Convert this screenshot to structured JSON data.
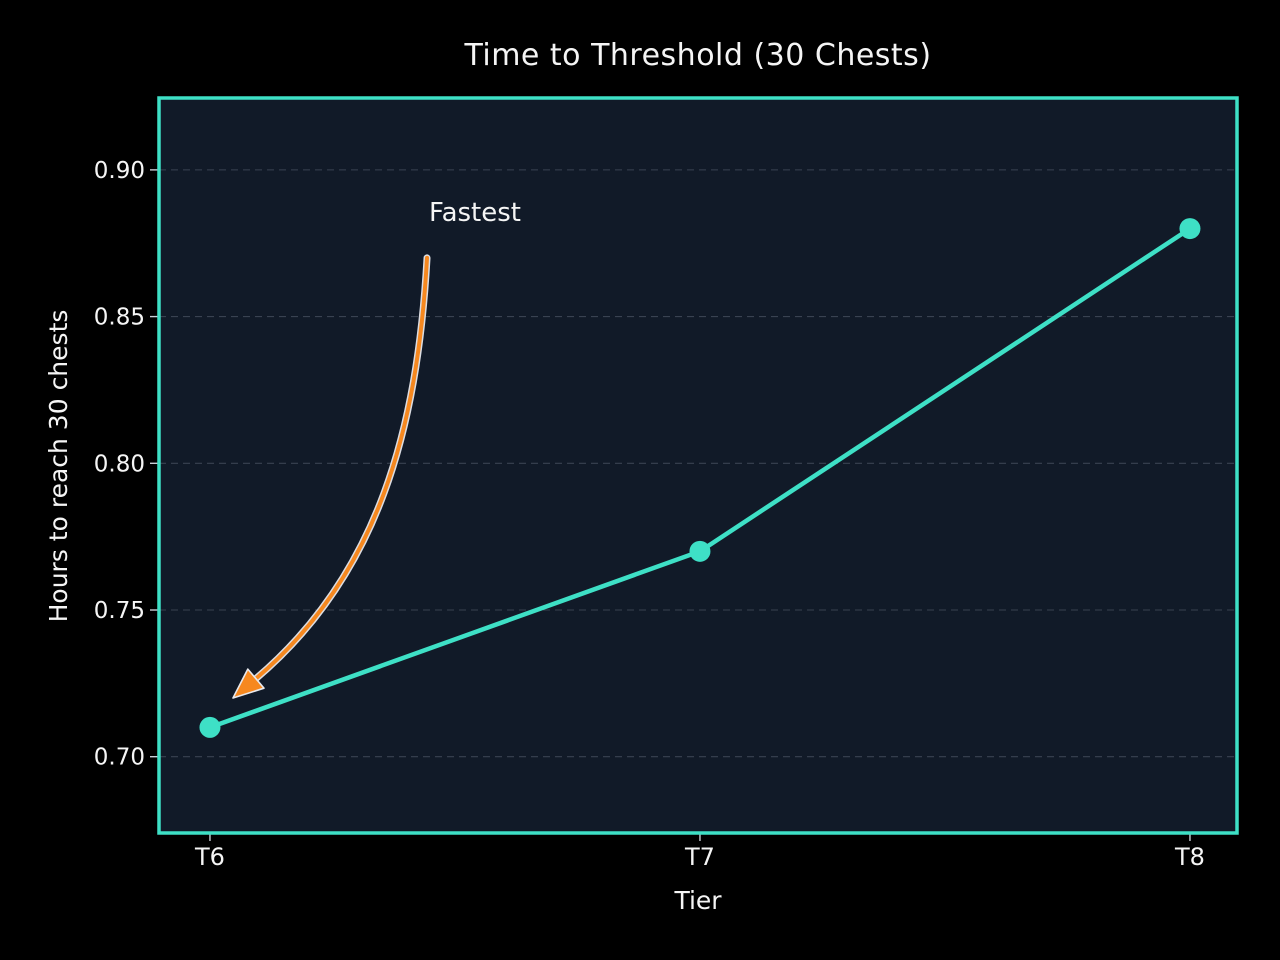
{
  "chart_data": {
    "type": "line",
    "title": "Time to Threshold (30 Chests)",
    "xlabel": "Tier",
    "ylabel": "Hours to reach 30 chests",
    "categories": [
      "T6",
      "T7",
      "T8"
    ],
    "series": [
      {
        "name": "Hours to reach 30 chests",
        "values": [
          0.71,
          0.77,
          0.88
        ]
      }
    ],
    "ytick_values": [
      0.9,
      0.85,
      0.8,
      0.75,
      0.7
    ],
    "ytick_labels": [
      "0.90",
      "0.85",
      "0.80",
      "0.75",
      "0.70"
    ],
    "ylim": [
      0.674,
      0.9245
    ],
    "xlim": [
      -0.104,
      2.096
    ],
    "grid": "horizontal-dashed",
    "legend": "none",
    "annotation": {
      "text": "Fastest",
      "arrow_start_xy": [
        0.443,
        0.87
      ],
      "arrow_end_xy": [
        0.047,
        0.72
      ]
    },
    "colors": {
      "line": "#3ee0c6",
      "marker": "#3ee0c6",
      "plot_border": "#3ee0c6",
      "background": "#000000",
      "plot_background": "#111a28",
      "grid": "#7a8595",
      "tick": "#c9ced6",
      "text": "#f5f5f5",
      "annotation_arrow": "#f6881f",
      "annotation_arrow_outline": "#e8e8ec"
    }
  }
}
